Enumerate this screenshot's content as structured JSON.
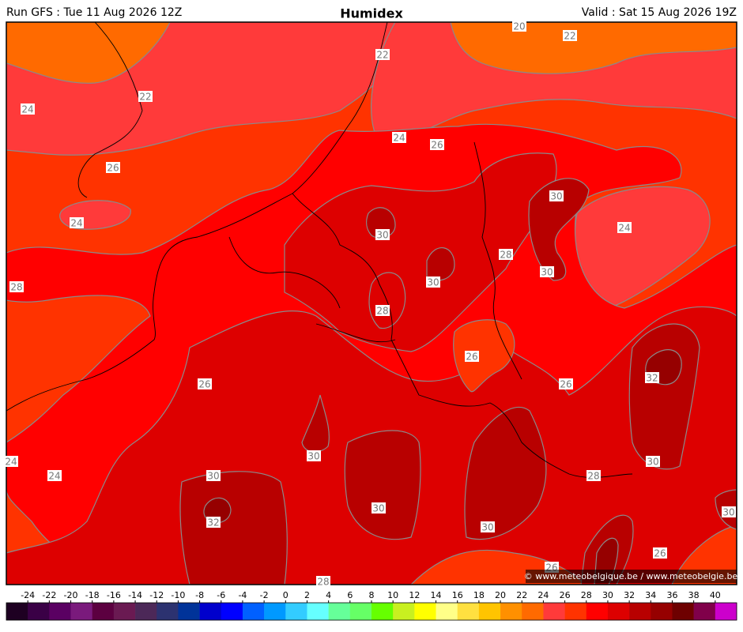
{
  "header": {
    "run": "Run GFS : Tue 11 Aug 2026 12Z",
    "title": "Humidex",
    "valid": "Valid : Sat 15 Aug 2026 19Z"
  },
  "contour_labels": [
    "20",
    "22",
    "22",
    "24",
    "22",
    "24",
    "26",
    "26",
    "30",
    "24",
    "24",
    "30",
    "28",
    "30",
    "28",
    "30",
    "28",
    "26",
    "26",
    "26",
    "32",
    "24",
    "30",
    "30",
    "24",
    "30",
    "28",
    "32",
    "30",
    "30",
    "30",
    "26",
    "26",
    "28"
  ],
  "credit": "© www.meteobelgique.be / www.meteobelgie.be",
  "colorbar": {
    "ticks": [
      -24,
      -22,
      -20,
      -18,
      -16,
      -14,
      -12,
      -10,
      -8,
      -6,
      -4,
      -2,
      0,
      2,
      4,
      6,
      8,
      10,
      12,
      14,
      16,
      18,
      20,
      22,
      24,
      26,
      28,
      30,
      32,
      34,
      36,
      38,
      40
    ],
    "colors": [
      "#1e0022",
      "#3a0046",
      "#5a0062",
      "#7a1a7c",
      "#5c0040",
      "#6a1a52",
      "#4c2858",
      "#2c3270",
      "#003399",
      "#0000cc",
      "#0000ff",
      "#0060ff",
      "#0099ff",
      "#33ccff",
      "#66ffff",
      "#66ff99",
      "#66ff66",
      "#66ff00",
      "#c8f020",
      "#ffff00",
      "#ffff88",
      "#ffe040",
      "#ffc400",
      "#ff9000",
      "#ff6a00",
      "#ff3a3a",
      "#ff3300",
      "#ff0000",
      "#dd0000",
      "#b80000",
      "#960000",
      "#6e0000",
      "#80004a",
      "#cc00cc"
    ]
  }
}
